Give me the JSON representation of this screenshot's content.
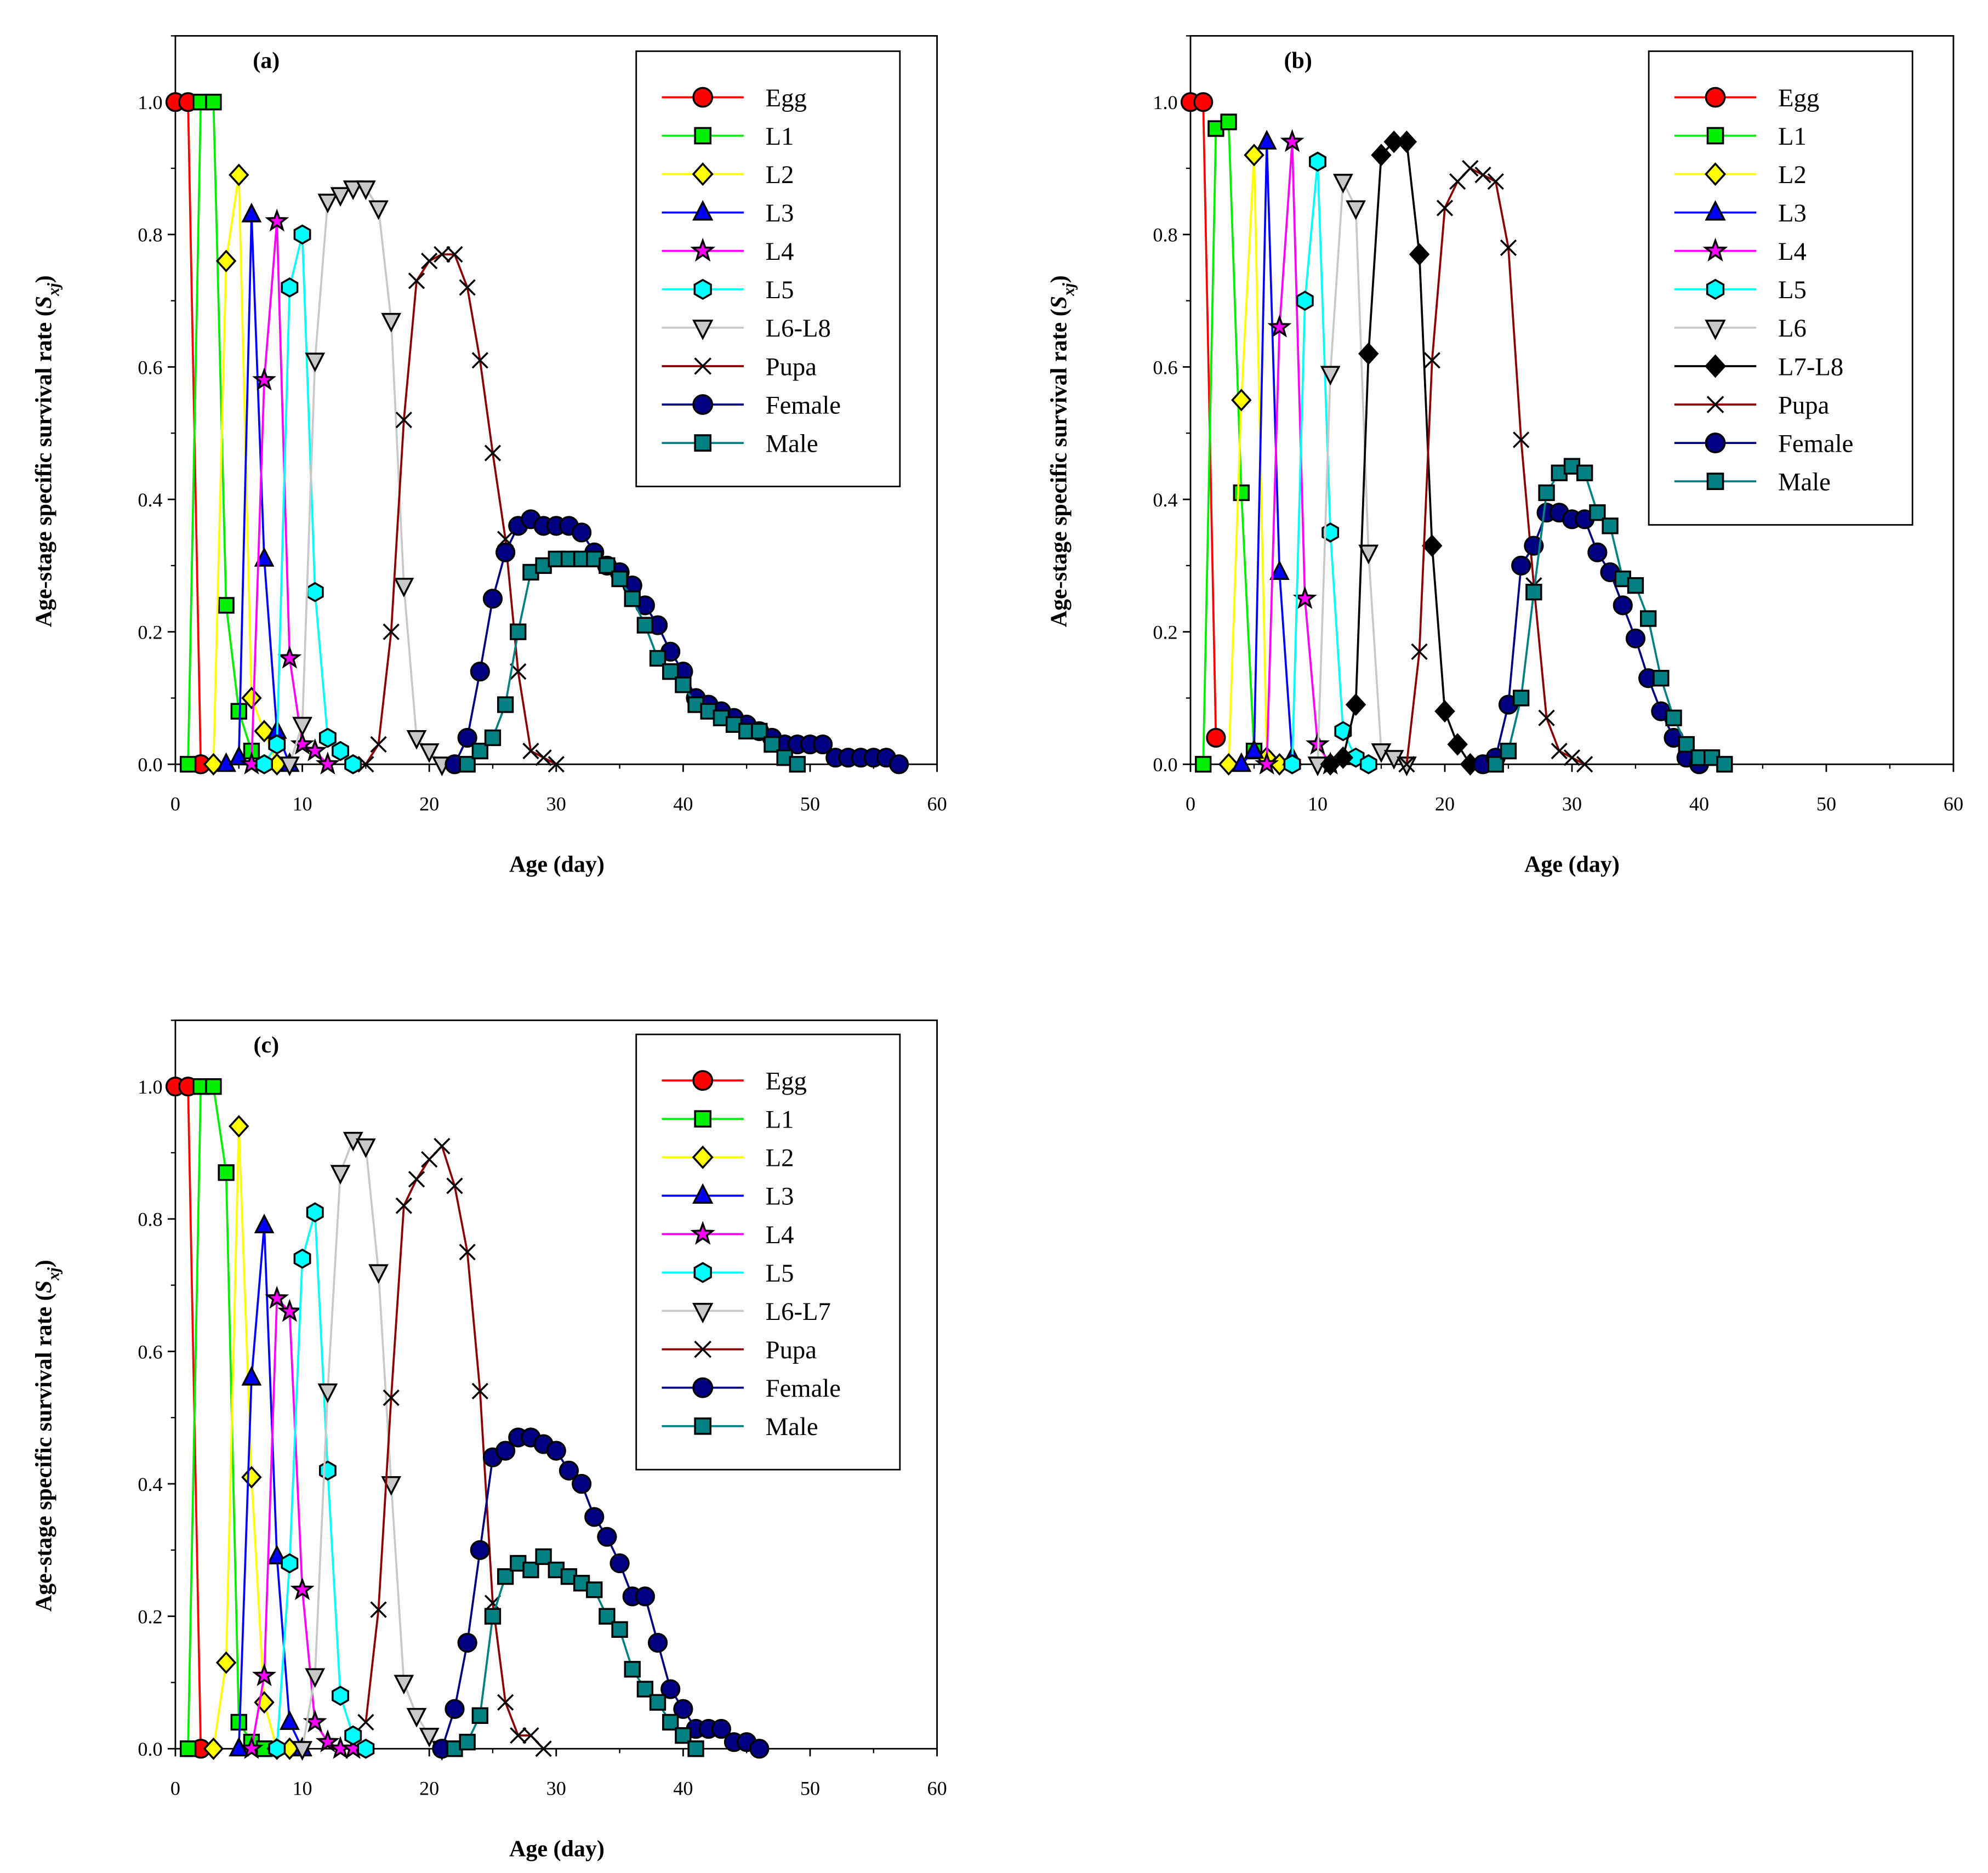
{
  "figure": {
    "xlabel": "Age (day)",
    "ylabel_prefix": "Age-stage specific survival rate (",
    "ylabel_symbol": "S",
    "ylabel_sub": "xj",
    "ylabel_suffix": ")"
  },
  "styles": {
    "Egg": {
      "color": "#ff0000",
      "marker": "circle"
    },
    "L1": {
      "color": "#00ee00",
      "marker": "square"
    },
    "L2": {
      "color": "#ffff00",
      "marker": "diamond"
    },
    "L3": {
      "color": "#0000ff",
      "marker": "triangle"
    },
    "L4": {
      "color": "#ff00ff",
      "marker": "star"
    },
    "L5": {
      "color": "#00ffff",
      "marker": "hexagon"
    },
    "L6-L8": {
      "color": "#c8c8c8",
      "marker": "triangle-down"
    },
    "L6": {
      "color": "#c8c8c8",
      "marker": "triangle-down"
    },
    "L6-L7": {
      "color": "#c8c8c8",
      "marker": "triangle-down"
    },
    "L7-L8": {
      "color": "#000000",
      "marker": "diamond"
    },
    "Pupa": {
      "color": "#8b0000",
      "marker": "x"
    },
    "Female": {
      "color": "#000080",
      "marker": "circle"
    },
    "Male": {
      "color": "#008080",
      "marker": "square"
    }
  },
  "chart_data": [
    {
      "type": "line",
      "panel_label": "(a)",
      "xlim": [
        0,
        60
      ],
      "ylim": [
        0,
        1.1
      ],
      "xticks": [
        "0",
        "10",
        "20",
        "30",
        "40",
        "50",
        "60"
      ],
      "yticks": [
        "0.0",
        "0.2",
        "0.4",
        "0.6",
        "0.8",
        "1.0"
      ],
      "series": [
        {
          "name": "Egg",
          "x": [
            0,
            1,
            2
          ],
          "y": [
            1.0,
            1.0,
            0.0
          ]
        },
        {
          "name": "L1",
          "x": [
            1,
            2,
            3,
            4,
            5,
            6
          ],
          "y": [
            0.0,
            1.0,
            1.0,
            0.24,
            0.08,
            0.02
          ]
        },
        {
          "name": "L2",
          "x": [
            3,
            4,
            5,
            6,
            7,
            8
          ],
          "y": [
            0.0,
            0.76,
            0.89,
            0.1,
            0.05,
            0.0
          ]
        },
        {
          "name": "L3",
          "x": [
            4,
            5,
            6,
            7,
            8,
            9
          ],
          "y": [
            0.0,
            0.01,
            0.83,
            0.31,
            0.05,
            0.0
          ]
        },
        {
          "name": "L4",
          "x": [
            6,
            7,
            8,
            9,
            10,
            11,
            12
          ],
          "y": [
            0.0,
            0.58,
            0.82,
            0.16,
            0.03,
            0.02,
            0.0
          ]
        },
        {
          "name": "L5",
          "x": [
            7,
            8,
            9,
            10,
            11,
            12,
            13,
            14
          ],
          "y": [
            0.0,
            0.03,
            0.72,
            0.8,
            0.26,
            0.04,
            0.02,
            0.0
          ]
        },
        {
          "name": "L6-L8",
          "x": [
            9,
            10,
            11,
            12,
            13,
            14,
            15,
            16,
            17,
            18,
            19,
            20,
            21
          ],
          "y": [
            0.0,
            0.06,
            0.61,
            0.85,
            0.86,
            0.87,
            0.87,
            0.84,
            0.67,
            0.27,
            0.04,
            0.02,
            0.0
          ]
        },
        {
          "name": "Pupa",
          "x": [
            15,
            16,
            17,
            18,
            19,
            20,
            21,
            22,
            23,
            24,
            25,
            26,
            27,
            28,
            29,
            30
          ],
          "y": [
            0.0,
            0.03,
            0.2,
            0.52,
            0.73,
            0.76,
            0.77,
            0.77,
            0.72,
            0.61,
            0.47,
            0.34,
            0.14,
            0.02,
            0.01,
            0.0
          ]
        },
        {
          "name": "Female",
          "x": [
            22,
            23,
            24,
            25,
            26,
            27,
            28,
            29,
            30,
            31,
            32,
            33,
            34,
            35,
            36,
            37,
            38,
            39,
            40,
            41,
            42,
            43,
            44,
            45,
            46,
            47,
            48,
            49,
            50,
            51,
            52,
            53,
            54,
            55,
            56,
            57
          ],
          "y": [
            0.0,
            0.04,
            0.14,
            0.25,
            0.32,
            0.36,
            0.37,
            0.36,
            0.36,
            0.36,
            0.35,
            0.32,
            0.3,
            0.29,
            0.27,
            0.24,
            0.21,
            0.17,
            0.14,
            0.1,
            0.09,
            0.08,
            0.07,
            0.06,
            0.05,
            0.04,
            0.03,
            0.03,
            0.03,
            0.03,
            0.01,
            0.01,
            0.01,
            0.01,
            0.01,
            0.0
          ]
        },
        {
          "name": "Male",
          "x": [
            23,
            24,
            25,
            26,
            27,
            28,
            29,
            30,
            31,
            32,
            33,
            34,
            35,
            36,
            37,
            38,
            39,
            40,
            41,
            42,
            43,
            44,
            45,
            46,
            47,
            48,
            49
          ],
          "y": [
            0.0,
            0.02,
            0.04,
            0.09,
            0.2,
            0.29,
            0.3,
            0.31,
            0.31,
            0.31,
            0.31,
            0.3,
            0.28,
            0.25,
            0.21,
            0.16,
            0.14,
            0.12,
            0.09,
            0.08,
            0.07,
            0.06,
            0.05,
            0.05,
            0.03,
            0.01,
            0.0
          ]
        }
      ]
    },
    {
      "type": "line",
      "panel_label": "(b)",
      "xlim": [
        0,
        60
      ],
      "ylim": [
        0,
        1.1
      ],
      "xticks": [
        "0",
        "10",
        "20",
        "30",
        "40",
        "50",
        "60"
      ],
      "yticks": [
        "0.0",
        "0.2",
        "0.4",
        "0.6",
        "0.8",
        "1.0"
      ],
      "series": [
        {
          "name": "Egg",
          "x": [
            0,
            1,
            2
          ],
          "y": [
            1.0,
            1.0,
            0.04
          ]
        },
        {
          "name": "L1",
          "x": [
            1,
            2,
            3,
            4,
            5
          ],
          "y": [
            0.0,
            0.96,
            0.97,
            0.41,
            0.02
          ]
        },
        {
          "name": "L2",
          "x": [
            3,
            4,
            5,
            6,
            7
          ],
          "y": [
            0.0,
            0.55,
            0.92,
            0.01,
            0.0
          ]
        },
        {
          "name": "L3",
          "x": [
            4,
            5,
            6,
            7,
            8
          ],
          "y": [
            0.0,
            0.02,
            0.94,
            0.29,
            0.01
          ]
        },
        {
          "name": "L4",
          "x": [
            6,
            7,
            8,
            9,
            10,
            11
          ],
          "y": [
            0.0,
            0.66,
            0.94,
            0.25,
            0.03,
            0.0
          ]
        },
        {
          "name": "L5",
          "x": [
            8,
            9,
            10,
            11,
            12,
            13,
            14
          ],
          "y": [
            0.0,
            0.7,
            0.91,
            0.35,
            0.05,
            0.01,
            0.0
          ]
        },
        {
          "name": "L6",
          "x": [
            10,
            11,
            12,
            13,
            14,
            15,
            16,
            17
          ],
          "y": [
            0.0,
            0.59,
            0.88,
            0.84,
            0.32,
            0.02,
            0.01,
            0.0
          ]
        },
        {
          "name": "L7-L8",
          "x": [
            11,
            12,
            13,
            14,
            15,
            16,
            17,
            18,
            19,
            20,
            21,
            22
          ],
          "y": [
            0.0,
            0.01,
            0.09,
            0.62,
            0.92,
            0.94,
            0.94,
            0.77,
            0.33,
            0.08,
            0.03,
            0.0
          ]
        },
        {
          "name": "Pupa",
          "x": [
            17,
            18,
            19,
            20,
            21,
            22,
            23,
            24,
            25,
            26,
            27,
            28,
            29,
            30,
            31
          ],
          "y": [
            0.0,
            0.17,
            0.61,
            0.84,
            0.88,
            0.9,
            0.89,
            0.88,
            0.78,
            0.49,
            0.27,
            0.07,
            0.02,
            0.01,
            0.0
          ]
        },
        {
          "name": "Female",
          "x": [
            23,
            24,
            25,
            26,
            27,
            28,
            29,
            30,
            31,
            32,
            33,
            34,
            35,
            36,
            37,
            38,
            39,
            40
          ],
          "y": [
            0.0,
            0.01,
            0.09,
            0.3,
            0.33,
            0.38,
            0.38,
            0.37,
            0.37,
            0.32,
            0.29,
            0.24,
            0.19,
            0.13,
            0.08,
            0.04,
            0.01,
            0.0
          ]
        },
        {
          "name": "Male",
          "x": [
            24,
            25,
            26,
            27,
            28,
            29,
            30,
            31,
            32,
            33,
            34,
            35,
            36,
            37,
            38,
            39,
            40,
            41,
            42
          ],
          "y": [
            0.0,
            0.02,
            0.1,
            0.26,
            0.41,
            0.44,
            0.45,
            0.44,
            0.38,
            0.36,
            0.28,
            0.27,
            0.22,
            0.13,
            0.07,
            0.03,
            0.01,
            0.01,
            0.0
          ]
        }
      ]
    },
    {
      "type": "line",
      "panel_label": "(c)",
      "xlim": [
        0,
        60
      ],
      "ylim": [
        0,
        1.1
      ],
      "xticks": [
        "0",
        "10",
        "20",
        "30",
        "40",
        "50",
        "60"
      ],
      "yticks": [
        "0.0",
        "0.2",
        "0.4",
        "0.6",
        "0.8",
        "1.0"
      ],
      "series": [
        {
          "name": "Egg",
          "x": [
            0,
            1,
            2
          ],
          "y": [
            1.0,
            1.0,
            0.0
          ]
        },
        {
          "name": "L1",
          "x": [
            1,
            2,
            3,
            4,
            5,
            6,
            7
          ],
          "y": [
            0.0,
            1.0,
            1.0,
            0.87,
            0.04,
            0.01,
            0.0
          ]
        },
        {
          "name": "L2",
          "x": [
            3,
            4,
            5,
            6,
            7,
            8,
            9
          ],
          "y": [
            0.0,
            0.13,
            0.94,
            0.41,
            0.07,
            0.0,
            0.0
          ]
        },
        {
          "name": "L3",
          "x": [
            5,
            6,
            7,
            8,
            9,
            10
          ],
          "y": [
            0.0,
            0.56,
            0.79,
            0.29,
            0.04,
            0.0
          ]
        },
        {
          "name": "L4",
          "x": [
            6,
            7,
            8,
            9,
            10,
            11,
            12,
            13,
            14
          ],
          "y": [
            0.0,
            0.11,
            0.68,
            0.66,
            0.24,
            0.04,
            0.01,
            0.0,
            0.0
          ]
        },
        {
          "name": "L5",
          "x": [
            8,
            9,
            10,
            11,
            12,
            13,
            14,
            15
          ],
          "y": [
            0.0,
            0.28,
            0.74,
            0.81,
            0.42,
            0.08,
            0.02,
            0.0
          ]
        },
        {
          "name": "L6-L7",
          "x": [
            10,
            11,
            12,
            13,
            14,
            15,
            16,
            17,
            18,
            19,
            20,
            21
          ],
          "y": [
            0.0,
            0.11,
            0.54,
            0.87,
            0.92,
            0.91,
            0.72,
            0.4,
            0.1,
            0.05,
            0.02,
            0.0
          ]
        },
        {
          "name": "Pupa",
          "x": [
            15,
            16,
            17,
            18,
            19,
            20,
            21,
            22,
            23,
            24,
            25,
            26,
            27,
            28,
            29
          ],
          "y": [
            0.04,
            0.21,
            0.53,
            0.82,
            0.86,
            0.89,
            0.91,
            0.85,
            0.75,
            0.54,
            0.22,
            0.07,
            0.02,
            0.02,
            0.0
          ]
        },
        {
          "name": "Female",
          "x": [
            21,
            22,
            23,
            24,
            25,
            26,
            27,
            28,
            29,
            30,
            31,
            32,
            33,
            34,
            35,
            36,
            37,
            38,
            39,
            40,
            41,
            42,
            43,
            44,
            45,
            46
          ],
          "y": [
            0.0,
            0.06,
            0.16,
            0.3,
            0.44,
            0.45,
            0.47,
            0.47,
            0.46,
            0.45,
            0.42,
            0.4,
            0.35,
            0.32,
            0.28,
            0.23,
            0.23,
            0.16,
            0.09,
            0.06,
            0.03,
            0.03,
            0.03,
            0.01,
            0.01,
            0.0
          ]
        },
        {
          "name": "Male",
          "x": [
            22,
            23,
            24,
            25,
            26,
            27,
            28,
            29,
            30,
            31,
            32,
            33,
            34,
            35,
            36,
            37,
            38,
            39,
            40,
            41
          ],
          "y": [
            0.0,
            0.01,
            0.05,
            0.2,
            0.26,
            0.28,
            0.27,
            0.29,
            0.27,
            0.26,
            0.25,
            0.24,
            0.2,
            0.18,
            0.12,
            0.09,
            0.07,
            0.04,
            0.02,
            0.0
          ]
        }
      ]
    }
  ]
}
